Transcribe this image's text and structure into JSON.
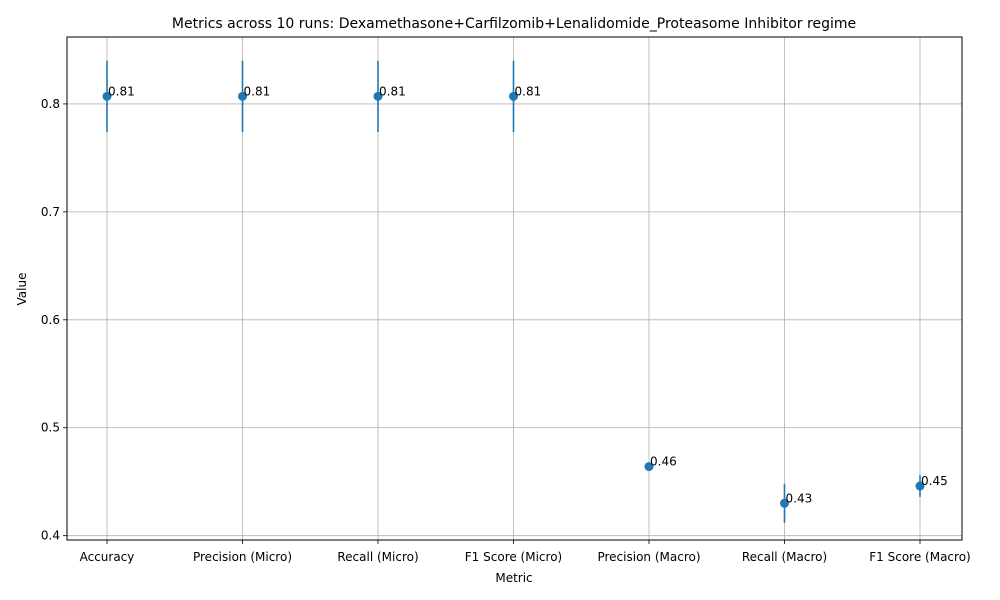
{
  "chart_data": {
    "type": "scatter",
    "title": "Metrics across 10 runs: Dexamethasone+Carfilzomib+Lenalidomide_Proteasome Inhibitor regime",
    "xlabel": "Metric",
    "ylabel": "Value",
    "categories": [
      "Accuracy",
      "Precision (Micro)",
      "Recall (Micro)",
      "F1 Score (Micro)",
      "Precision (Macro)",
      "Recall (Macro)",
      "F1 Score (Macro)"
    ],
    "values": [
      0.807,
      0.807,
      0.807,
      0.807,
      0.464,
      0.43,
      0.446
    ],
    "errors": [
      0.033,
      0.033,
      0.033,
      0.033,
      0.0,
      0.018,
      0.01
    ],
    "point_labels": [
      "0.81",
      "0.81",
      "0.81",
      "0.81",
      "0.46",
      "0.43",
      "0.45"
    ],
    "ylim": [
      0.396,
      0.862
    ],
    "yticks": [
      0.4,
      0.5,
      0.6,
      0.7,
      0.8
    ],
    "ytick_labels": [
      "0.4",
      "0.5",
      "0.6",
      "0.7",
      "0.8"
    ],
    "grid": true,
    "legend": "none",
    "color": "#1f77b4"
  }
}
